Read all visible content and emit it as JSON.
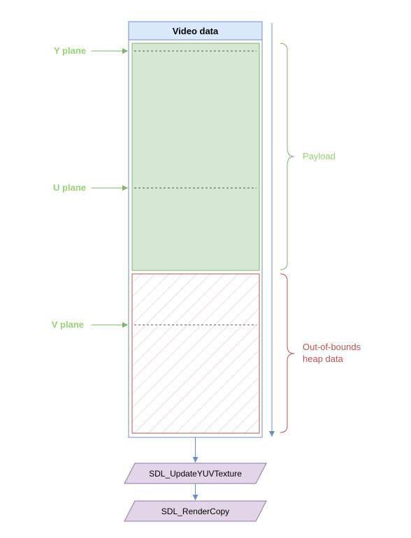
{
  "header": {
    "title": "Video data"
  },
  "planes": {
    "y": "Y plane",
    "u": "U plane",
    "v": "V plane"
  },
  "regions": {
    "payload": "Payload",
    "oob_line1": "Out-of-bounds",
    "oob_line2": "heap data"
  },
  "steps": {
    "update": "SDL_UpdateYUVTexture",
    "render": "SDL_RenderCopy"
  },
  "colors": {
    "blue_stroke": "#6c8ebf",
    "header_fill": "#dae8fc",
    "green_fill": "#d5e8d4",
    "green_stroke": "#82b366",
    "green_text": "#97d077",
    "red_stroke": "#b85450",
    "red_hatch": "#f2b6b6",
    "red_text": "#b85450",
    "purple_fill": "#e1d5e7",
    "purple_stroke": "#9673a6",
    "dashed": "#555555"
  }
}
